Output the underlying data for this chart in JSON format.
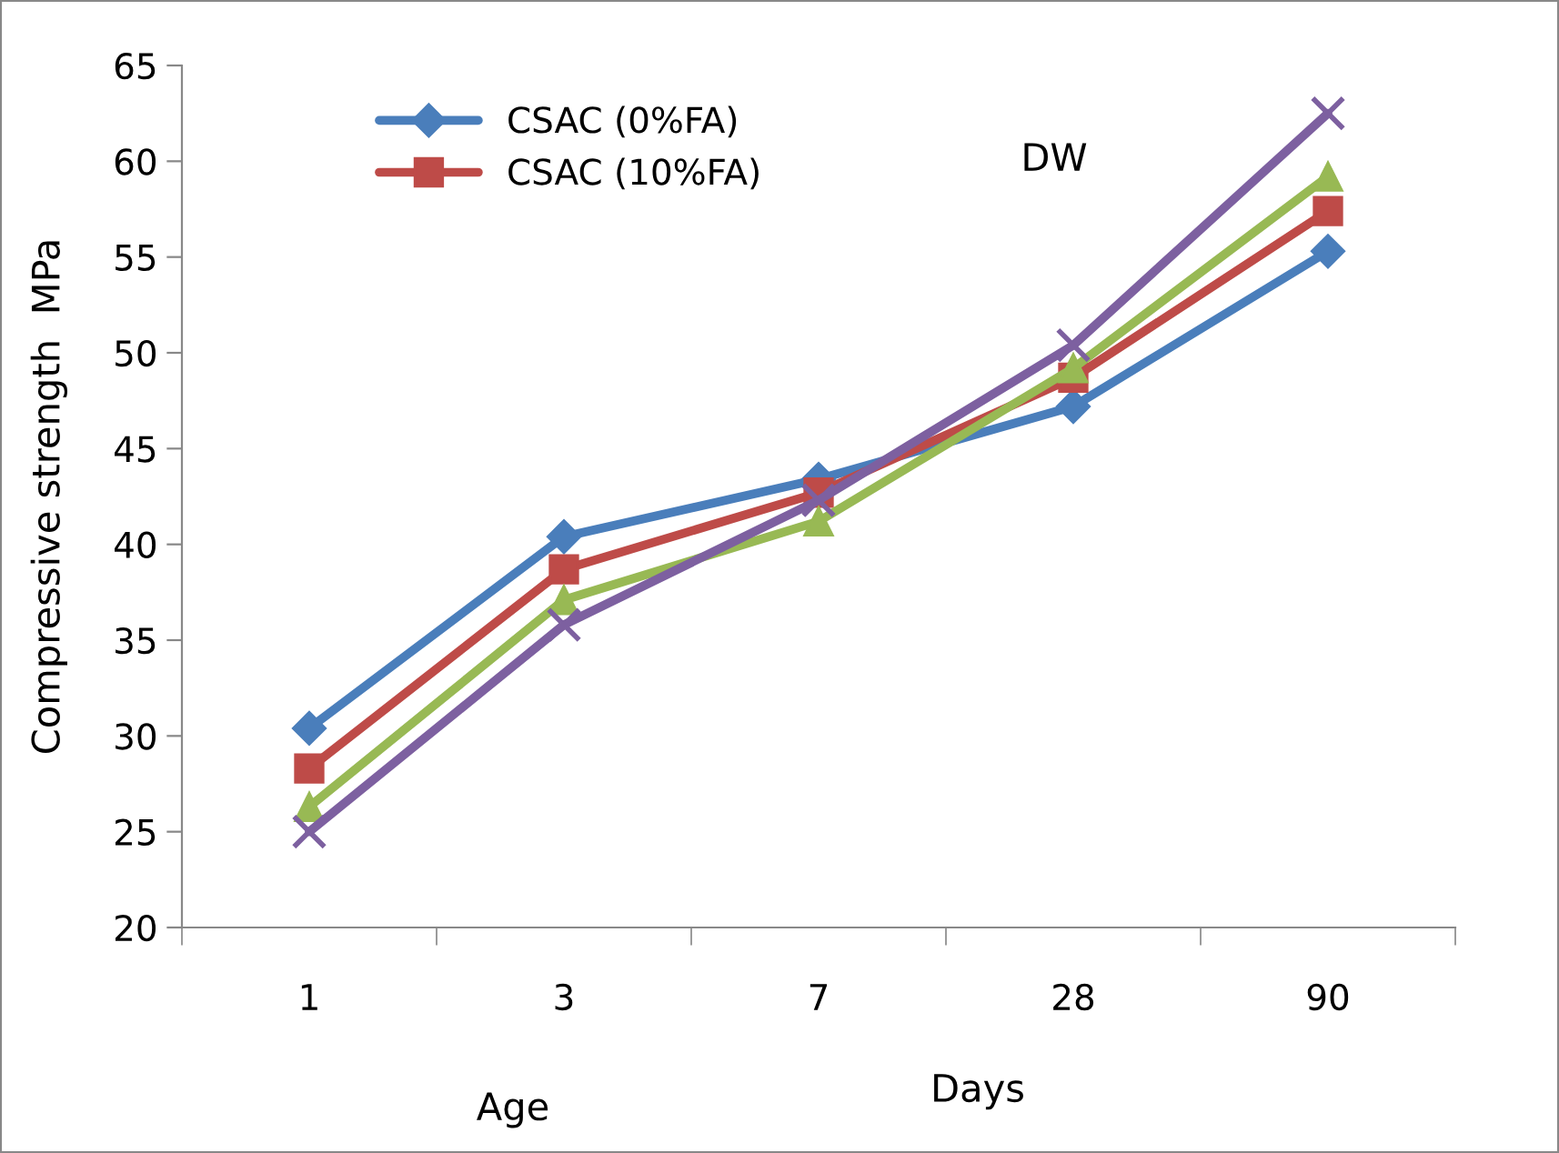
{
  "chart_data": {
    "type": "line",
    "ylabel": "Compressive strength  MPa",
    "xlabel": "Age",
    "categories": [
      "1",
      "3",
      "7",
      "28",
      "90"
    ],
    "series": [
      {
        "name": "CSAC (0%FA)",
        "color": "#4a7ebb",
        "marker": "diamond",
        "values": [
          30.4,
          40.4,
          43.4,
          47.2,
          55.3
        ]
      },
      {
        "name": "CSAC (10%FA)",
        "color": "#be4b48",
        "marker": "square",
        "values": [
          28.3,
          38.7,
          42.7,
          48.7,
          57.4
        ]
      },
      {
        "color": "#98b954",
        "marker": "triangle",
        "values": [
          26.3,
          37.1,
          41.2,
          49.2,
          59.2
        ]
      },
      {
        "color": "#7d60a0",
        "marker": "cross",
        "values": [
          25.0,
          35.8,
          42.3,
          50.4,
          62.5
        ]
      }
    ],
    "ylim": [
      20,
      65
    ],
    "yticks": [
      20,
      25,
      30,
      35,
      40,
      45,
      50,
      55,
      60,
      65
    ],
    "grid": false,
    "legend": "top left",
    "annotations": [
      "DW",
      "Days"
    ]
  }
}
